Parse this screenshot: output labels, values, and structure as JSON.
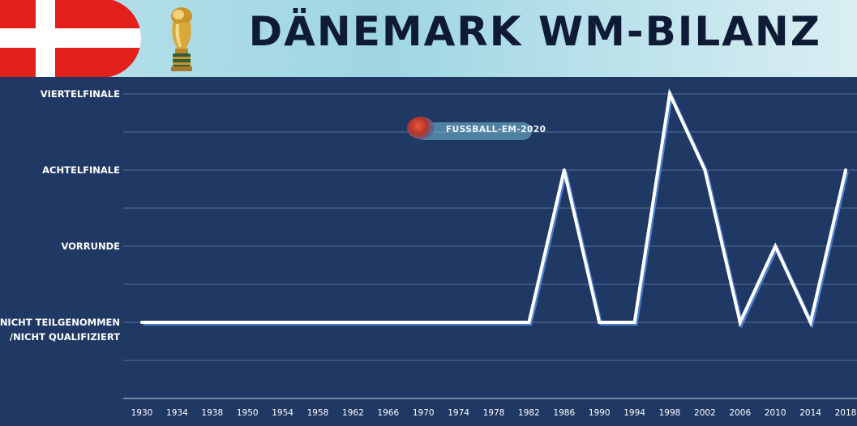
{
  "header": {
    "title": "DÄNEMARK WM-BILANZ",
    "flag_colors": [
      "#e3201b",
      "#ffffff"
    ],
    "trophy_icon": "world-cup-trophy-icon"
  },
  "watermark": {
    "text": "FUSSBALL-EM-2020",
    "icon": "soccer-ball-icon"
  },
  "chart_data": {
    "type": "line",
    "title": "DÄNEMARK WM-BILANZ",
    "xlabel": "",
    "ylabel": "",
    "y_categories": [
      "NICHT TEILGENOMMEN /NICHT QUALIFIZIERT",
      "VORRUNDE",
      "ACHTELFINALE",
      "VIERTELFINALE"
    ],
    "y_tick_lines": [
      [
        "NICHT TEILGENOMMEN",
        "/NICHT QUALIFIZIERT"
      ],
      [
        "VORRUNDE"
      ],
      [
        "ACHTELFINALE"
      ],
      [
        "VIERTELFINALE"
      ]
    ],
    "x": [
      1930,
      1934,
      1938,
      1950,
      1954,
      1958,
      1962,
      1966,
      1970,
      1974,
      1978,
      1982,
      1986,
      1990,
      1994,
      1998,
      2002,
      2006,
      2010,
      2014,
      2018
    ],
    "series": [
      {
        "values": [
          0,
          0,
          0,
          0,
          0,
          0,
          0,
          0,
          0,
          0,
          0,
          0,
          2,
          0,
          0,
          3,
          2,
          0,
          1,
          0,
          2
        ]
      }
    ],
    "ylim": [
      -1,
      3
    ],
    "grid": true,
    "colors": {
      "background": "#1f3864",
      "line": "#ffffff",
      "shadow": "#4f7fd0",
      "grid": "#5a6f96",
      "text": "#ffffff"
    }
  }
}
